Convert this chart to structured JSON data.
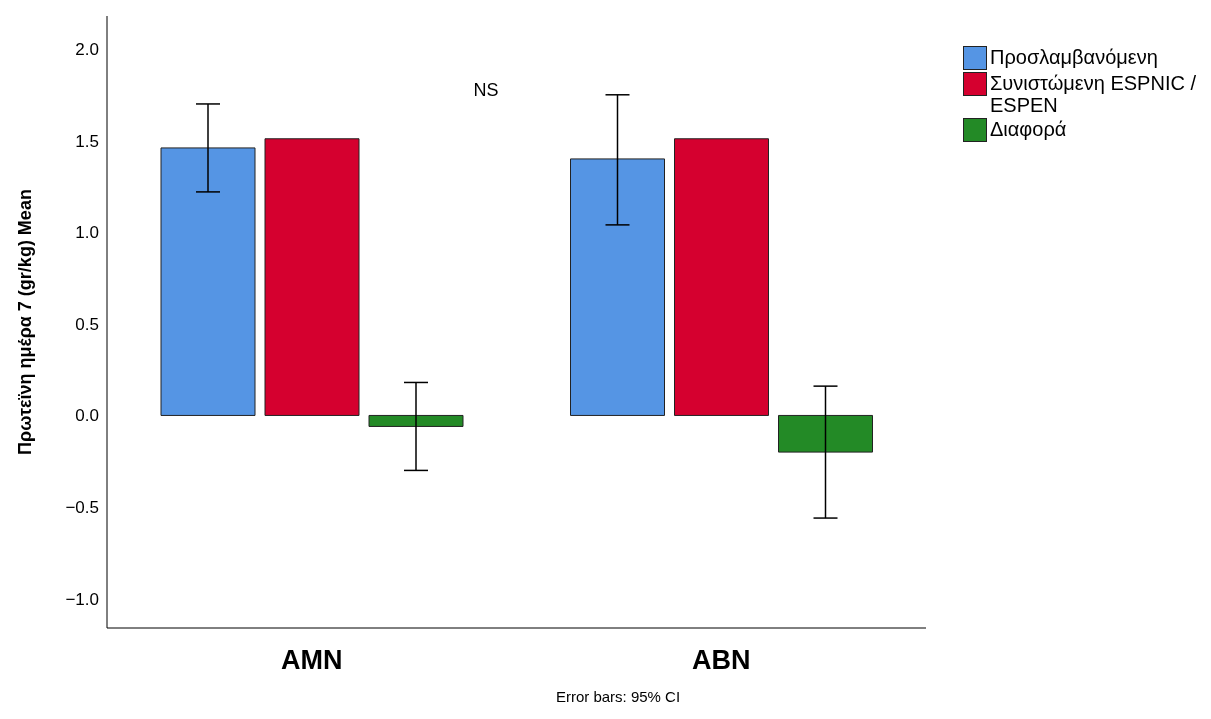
{
  "chart_data": {
    "type": "bar",
    "ylabel": "Πρωτεϊνη ημέρα 7 (gr/kg) Mean",
    "categories": [
      "AMN",
      "ABN"
    ],
    "series": [
      {
        "name": "Προσλαμβανόμενη",
        "color": "#5595e4",
        "values": [
          1.46,
          1.4
        ],
        "errors": [
          [
            1.22,
            1.7
          ],
          [
            1.04,
            1.75
          ]
        ]
      },
      {
        "name": "Συνιστώμενη ESPNIC / ESPEN",
        "color": "#d5002f",
        "values": [
          1.51,
          1.51
        ],
        "errors": [
          null,
          null
        ]
      },
      {
        "name": "Διαφορά",
        "color": "#238a26",
        "values": [
          -0.06,
          -0.2
        ],
        "errors": [
          [
            -0.3,
            0.18
          ],
          [
            -0.56,
            0.16
          ]
        ]
      }
    ],
    "ylim": [
      -1.16,
      2.18
    ],
    "yticks": [
      {
        "value": -1,
        "label": "−1.0"
      },
      {
        "value": -0.5,
        "label": "−0.5"
      },
      {
        "value": 0,
        "label": "0.0"
      },
      {
        "value": 0.5,
        "label": "0.5"
      },
      {
        "value": 1,
        "label": "1.0"
      },
      {
        "value": 1.5,
        "label": "1.5"
      },
      {
        "value": 2,
        "label": "2.0"
      }
    ],
    "grid": false,
    "legend": "top right",
    "annotations": [
      "NS",
      "Error bars: 95% CI"
    ]
  }
}
